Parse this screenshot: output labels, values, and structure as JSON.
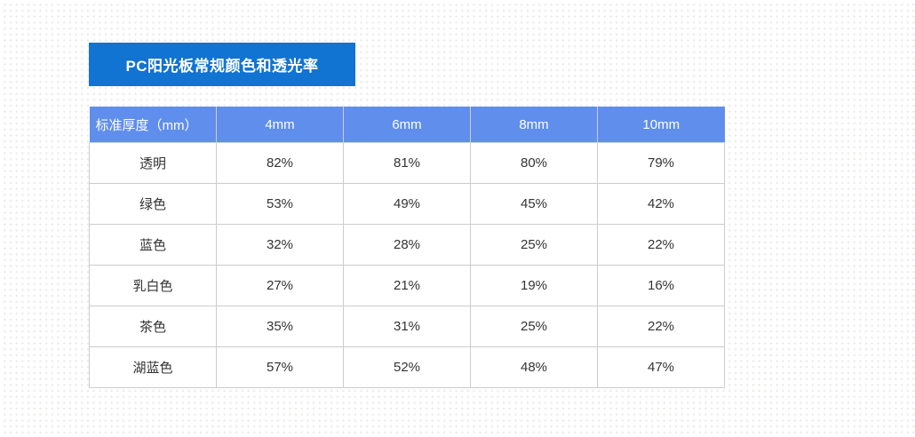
{
  "colors": {
    "banner_blue": "#1173d2",
    "header_blue": "#5f8eec",
    "cell_border_gray": "#cccccc",
    "body_text": "#333333",
    "dot_pattern": "#efedeb"
  },
  "chart_data": {
    "type": "table",
    "title": "PC阳光板常规颜色和透光率",
    "columns": [
      "标准厚度（mm）",
      "4mm",
      "6mm",
      "8mm",
      "10mm"
    ],
    "rows": [
      {
        "label": "透明",
        "values": [
          "82%",
          "81%",
          "80%",
          "79%"
        ]
      },
      {
        "label": "绿色",
        "values": [
          "53%",
          "49%",
          "45%",
          "42%"
        ]
      },
      {
        "label": "蓝色",
        "values": [
          "32%",
          "28%",
          "25%",
          "22%"
        ]
      },
      {
        "label": "乳白色",
        "values": [
          "27%",
          "21%",
          "19%",
          "16%"
        ]
      },
      {
        "label": "茶色",
        "values": [
          "35%",
          "31%",
          "25%",
          "22%"
        ]
      },
      {
        "label": "湖蓝色",
        "values": [
          "57%",
          "52%",
          "48%",
          "47%"
        ]
      }
    ],
    "layout": {
      "grid": "full-borders",
      "header_position": "top",
      "legend": "none"
    }
  }
}
